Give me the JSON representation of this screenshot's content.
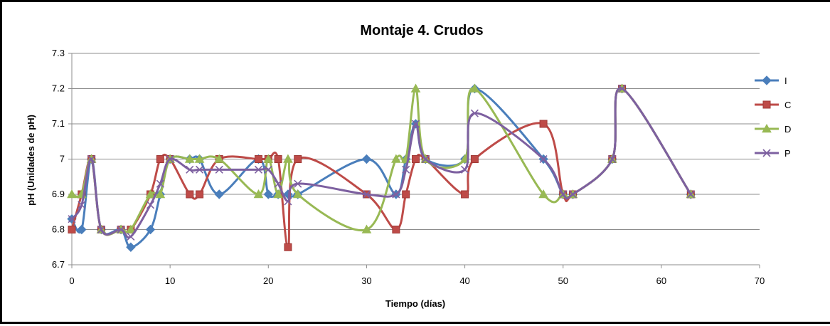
{
  "chart_data": {
    "type": "line",
    "title": "Montaje 4. Crudos",
    "xlabel": "Tiempo (días)",
    "ylabel": "pH (Unidades de pH)",
    "xlim": [
      0,
      70
    ],
    "ylim": [
      6.7,
      7.3
    ],
    "x_ticks": [
      0,
      10,
      20,
      30,
      40,
      50,
      60,
      70
    ],
    "y_ticks": [
      6.7,
      6.8,
      6.9,
      7,
      7.1,
      7.2,
      7.3
    ],
    "x_tick_labels": [
      "0",
      "10",
      "20",
      "30",
      "40",
      "50",
      "60",
      "70"
    ],
    "y_tick_labels": [
      "6.7",
      "6.8",
      "6.9",
      "7",
      "7.1",
      "7.2",
      "7.3"
    ],
    "grid": "horizontal",
    "legend_position": "right",
    "smooth": true,
    "series": [
      {
        "name": "I",
        "color": "#4a7ebb",
        "marker": "diamond",
        "x": [
          0,
          1,
          2,
          3,
          5,
          6,
          8,
          9,
          10,
          12,
          13,
          15,
          19,
          20,
          21,
          22,
          23,
          30,
          33,
          34,
          35,
          36,
          40,
          41,
          48,
          50,
          51,
          55,
          56,
          63
        ],
        "y": [
          6.83,
          6.8,
          7.0,
          6.8,
          6.8,
          6.75,
          6.8,
          6.9,
          7.0,
          7.0,
          7.0,
          6.9,
          7.0,
          6.9,
          6.9,
          6.9,
          6.9,
          7.0,
          6.9,
          7.0,
          7.1,
          7.0,
          7.0,
          7.2,
          7.0,
          6.9,
          6.9,
          7.0,
          7.2,
          6.9
        ]
      },
      {
        "name": "C",
        "color": "#be4b48",
        "marker": "square",
        "x": [
          0,
          1,
          2,
          3,
          5,
          6,
          8,
          9,
          10,
          12,
          13,
          15,
          19,
          20,
          21,
          22,
          23,
          30,
          33,
          34,
          35,
          36,
          40,
          41,
          48,
          50,
          51,
          55,
          56,
          63
        ],
        "y": [
          6.8,
          6.9,
          7.0,
          6.8,
          6.8,
          6.8,
          6.9,
          7.0,
          7.0,
          6.9,
          6.9,
          7.0,
          7.0,
          7.0,
          7.0,
          6.75,
          7.0,
          6.9,
          6.8,
          6.9,
          7.0,
          7.0,
          6.9,
          7.0,
          7.1,
          6.9,
          6.9,
          7.0,
          7.2,
          6.9
        ]
      },
      {
        "name": "D",
        "color": "#98b954",
        "marker": "triangle",
        "x": [
          0,
          1,
          2,
          3,
          5,
          6,
          8,
          9,
          10,
          12,
          13,
          15,
          19,
          20,
          21,
          22,
          23,
          30,
          33,
          34,
          35,
          36,
          40,
          41,
          48,
          50,
          51,
          55,
          56,
          63
        ],
        "y": [
          6.9,
          6.9,
          7.0,
          6.8,
          6.8,
          6.8,
          6.9,
          6.9,
          7.0,
          7.0,
          7.0,
          7.0,
          6.9,
          7.0,
          6.9,
          7.0,
          6.9,
          6.8,
          7.0,
          7.0,
          7.2,
          7.0,
          7.0,
          7.2,
          6.9,
          6.9,
          6.9,
          7.0,
          7.2,
          6.9
        ]
      },
      {
        "name": "P",
        "color": "#7d60a0",
        "marker": "x",
        "x": [
          0,
          1,
          2,
          3,
          5,
          6,
          8,
          9,
          10,
          12,
          13,
          15,
          19,
          20,
          21,
          22,
          23,
          30,
          33,
          34,
          35,
          36,
          40,
          41,
          48,
          50,
          51,
          55,
          56,
          63
        ],
        "y": [
          6.83,
          6.87,
          7.0,
          6.8,
          6.8,
          6.78,
          6.87,
          6.93,
          7.0,
          6.97,
          6.97,
          6.97,
          6.97,
          6.97,
          6.93,
          6.88,
          6.93,
          6.9,
          6.9,
          6.97,
          7.1,
          7.0,
          6.97,
          7.13,
          7.0,
          6.9,
          6.9,
          7.0,
          7.2,
          6.9
        ]
      }
    ]
  }
}
